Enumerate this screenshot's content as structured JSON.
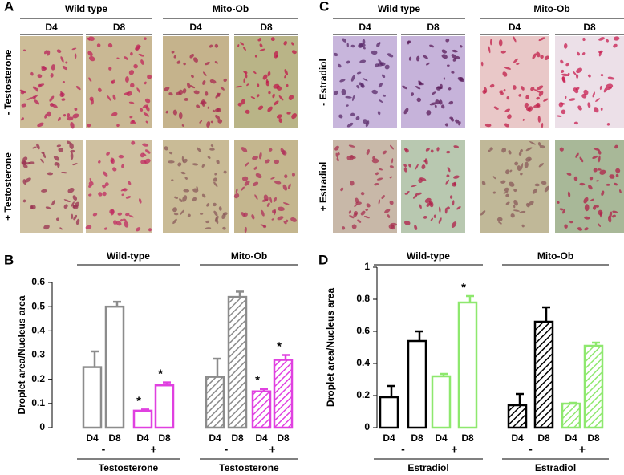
{
  "images": [
    {
      "label": "A",
      "column_groups": [
        {
          "title": "Wild type",
          "days": [
            "D4",
            "D8"
          ]
        },
        {
          "title": "Mito-Ob",
          "days": [
            "D4",
            "D8"
          ]
        }
      ],
      "rows": [
        "- Testosterone",
        "+ Testosterone"
      ]
    },
    {
      "label": "C",
      "column_groups": [
        {
          "title": "Wild type",
          "days": [
            "D4",
            "D8"
          ]
        },
        {
          "title": "Mito-Ob",
          "days": [
            "D4",
            "D8"
          ]
        }
      ],
      "rows": [
        "- Estradiol",
        "+ Estradiol"
      ]
    }
  ],
  "chart_data": [
    {
      "type": "bar",
      "panel": "B",
      "ylabel": "Droplet area/Nucleus area",
      "ylim": [
        0,
        0.6
      ],
      "yticks": [
        0,
        0.1,
        0.2,
        0.3,
        0.4,
        0.5,
        0.6
      ],
      "groups": [
        {
          "title": "Wild-type",
          "categories": [
            "D4",
            "D8",
            "D4",
            "D8"
          ],
          "signs": [
            "-",
            "+"
          ],
          "treatment": "Testosterone",
          "hatched": false,
          "colors": [
            "#8c8c8c",
            "#8c8c8c",
            "#e040e0",
            "#e040e0"
          ],
          "values": [
            0.25,
            0.5,
            0.07,
            0.175
          ],
          "errors": [
            0.065,
            0.02,
            0.005,
            0.012
          ],
          "significance": [
            null,
            null,
            "*",
            "*"
          ]
        },
        {
          "title": "Mito-Ob",
          "categories": [
            "D4",
            "D8",
            "D4",
            "D8"
          ],
          "signs": [
            "-",
            "+"
          ],
          "treatment": "Testosterone",
          "hatched": true,
          "colors": [
            "#8c8c8c",
            "#8c8c8c",
            "#e040e0",
            "#e040e0"
          ],
          "values": [
            0.21,
            0.54,
            0.15,
            0.28
          ],
          "errors": [
            0.075,
            0.022,
            0.01,
            0.02
          ],
          "significance": [
            null,
            null,
            "*",
            "*"
          ]
        }
      ]
    },
    {
      "type": "bar",
      "panel": "D",
      "ylabel": "Droplet area/Nucleus area",
      "ylim": [
        0,
        1
      ],
      "yticks": [
        0,
        0.2,
        0.4,
        0.6,
        0.8,
        1
      ],
      "groups": [
        {
          "title": "Wild-type",
          "categories": [
            "D4",
            "D8",
            "D4",
            "D8"
          ],
          "signs": [
            "-",
            "+"
          ],
          "treatment": "Estradiol",
          "hatched": false,
          "colors": [
            "#000000",
            "#000000",
            "#8ee86e",
            "#8ee86e"
          ],
          "values": [
            0.19,
            0.54,
            0.32,
            0.78
          ],
          "errors": [
            0.07,
            0.06,
            0.015,
            0.04
          ],
          "significance": [
            null,
            null,
            null,
            "*"
          ]
        },
        {
          "title": "Mito-Ob",
          "categories": [
            "D4",
            "D8",
            "D4",
            "D8"
          ],
          "signs": [
            "-",
            "+"
          ],
          "treatment": "Estradiol",
          "hatched": true,
          "colors": [
            "#000000",
            "#000000",
            "#8ee86e",
            "#8ee86e"
          ],
          "values": [
            0.14,
            0.66,
            0.15,
            0.51
          ],
          "errors": [
            0.07,
            0.09,
            0.005,
            0.02
          ],
          "significance": [
            null,
            null,
            null,
            null
          ]
        }
      ]
    }
  ]
}
